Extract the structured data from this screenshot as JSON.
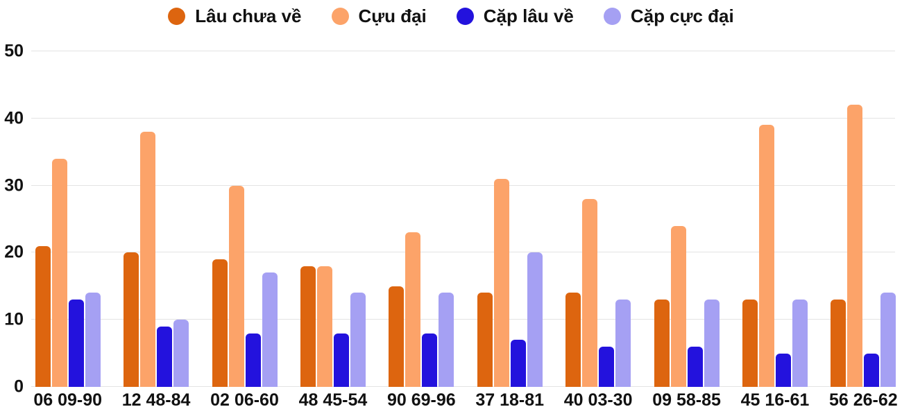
{
  "colors": {
    "background": "#ffffff",
    "grid": "#e3e3e3",
    "text": "#111111"
  },
  "chart_data": {
    "type": "bar",
    "title": "",
    "xlabel": "",
    "ylabel": "",
    "ylim": [
      0,
      50
    ],
    "yticks": [
      0,
      10,
      20,
      30,
      40,
      50
    ],
    "grid": true,
    "legend_position": "top-center",
    "categories": [
      "06 09-90",
      "12 48-84",
      "02 06-60",
      "48 45-54",
      "90 69-96",
      "37 18-81",
      "40 03-30",
      "09 58-85",
      "45 16-61",
      "56 26-62"
    ],
    "series": [
      {
        "name": "Lâu chưa về",
        "color": "#dd650f",
        "values": [
          21,
          20,
          19,
          18,
          15,
          14,
          14,
          13,
          13,
          13
        ]
      },
      {
        "name": "Cựu đại",
        "color": "#fca369",
        "values": [
          34,
          38,
          30,
          18,
          23,
          31,
          28,
          24,
          39,
          42
        ]
      },
      {
        "name": "Cặp lâu về",
        "color": "#2312dd",
        "values": [
          13,
          9,
          8,
          8,
          8,
          7,
          6,
          6,
          5,
          5
        ]
      },
      {
        "name": "Cặp cực đại",
        "color": "#a5a0f3",
        "values": [
          14,
          10,
          17,
          14,
          14,
          20,
          13,
          13,
          13,
          14
        ]
      }
    ]
  }
}
